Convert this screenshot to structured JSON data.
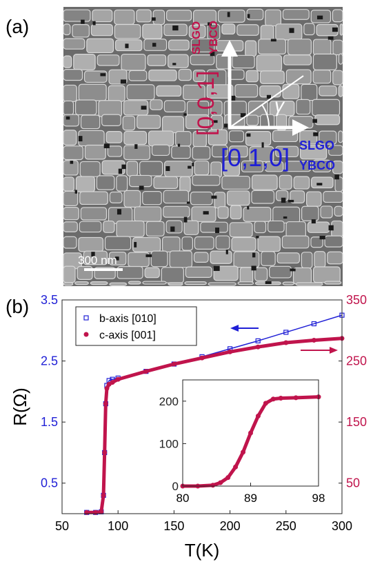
{
  "panel_a": {
    "label": "(a)",
    "scale_bar": "300 nm",
    "angle": "γ",
    "axis_vertical": {
      "label": "[0,0,1]",
      "sup": "SLGO",
      "sub": "YBCO"
    },
    "axis_horizontal": {
      "label": "[0,1,0]",
      "sup": "SLGO",
      "sub": "YBCO"
    }
  },
  "panel_b_label": "(b)",
  "chart_data": [
    {
      "type": "scatter",
      "xlabel": "T(K)",
      "ylabel": "R(Ω)",
      "xlim": [
        50,
        300
      ],
      "xticks": [
        50,
        100,
        150,
        200,
        250,
        300
      ],
      "ylim": [
        0,
        3.5
      ],
      "yticks": [
        0.5,
        1.5,
        2.5,
        3.5
      ],
      "y_color": "#1f1fd6",
      "y2lim": [
        0,
        350
      ],
      "y2ticks": [
        50,
        150,
        250,
        350
      ],
      "y2_color": "#c0144c",
      "legend": "upper left",
      "series": [
        {
          "name": "b-axis [010]",
          "color": "#1f1fd6",
          "marker": "square",
          "axis": "y",
          "x": [
            72,
            80,
            85,
            87,
            88,
            89,
            90,
            92,
            95,
            100,
            125,
            150,
            175,
            200,
            225,
            250,
            275,
            300
          ],
          "values": [
            0.02,
            0.02,
            0.03,
            0.3,
            1.0,
            1.8,
            2.1,
            2.18,
            2.2,
            2.22,
            2.33,
            2.45,
            2.57,
            2.7,
            2.83,
            2.97,
            3.11,
            3.25
          ]
        },
        {
          "name": "c-axis [001]",
          "color": "#c0144c",
          "marker": "circle",
          "axis": "y2",
          "x": [
            72,
            80,
            85,
            87,
            88,
            89,
            90,
            92,
            95,
            100,
            125,
            150,
            175,
            200,
            225,
            250,
            275,
            300
          ],
          "values": [
            2,
            2,
            3,
            30,
            100,
            180,
            205,
            212,
            215,
            220,
            233,
            245,
            255,
            265,
            273,
            280,
            284,
            287
          ]
        }
      ]
    },
    {
      "type": "scatter",
      "xlim": [
        80,
        98
      ],
      "xticks": [
        80,
        89,
        98
      ],
      "ylim": [
        0,
        250
      ],
      "yticks": [
        0,
        100,
        200
      ],
      "series": [
        {
          "color": "#c0144c",
          "marker": "circle",
          "axis": "y",
          "x": [
            80,
            82,
            84,
            85,
            86,
            87,
            88,
            89,
            90,
            91,
            92,
            93,
            95,
            98
          ],
          "values": [
            0,
            0,
            2,
            8,
            20,
            45,
            80,
            125,
            165,
            195,
            205,
            207,
            208,
            210
          ]
        }
      ]
    }
  ]
}
